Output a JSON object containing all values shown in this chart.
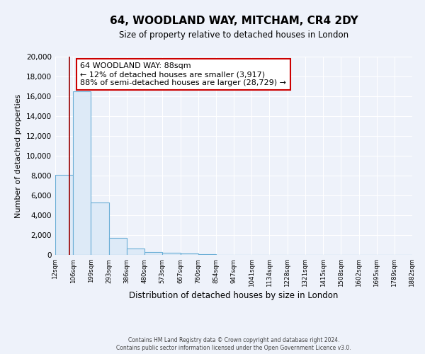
{
  "title": "64, WOODLAND WAY, MITCHAM, CR4 2DY",
  "subtitle": "Size of property relative to detached houses in London",
  "xlabel": "Distribution of detached houses by size in London",
  "ylabel": "Number of detached properties",
  "bar_edges": [
    12,
    106,
    199,
    293,
    386,
    480,
    573,
    667,
    760,
    854,
    947,
    1041,
    1134,
    1228,
    1321,
    1415,
    1508,
    1602,
    1695,
    1789,
    1882
  ],
  "bar_heights": [
    8100,
    16500,
    5300,
    1750,
    650,
    300,
    200,
    150,
    100,
    0,
    0,
    0,
    0,
    0,
    0,
    0,
    0,
    0,
    0,
    0
  ],
  "bar_color": "#ddeaf7",
  "bar_edge_color": "#6aaed6",
  "property_size": 88,
  "vline_color": "#990000",
  "annotation_title": "64 WOODLAND WAY: 88sqm",
  "annotation_line1": "← 12% of detached houses are smaller (3,917)",
  "annotation_line2": "88% of semi-detached houses are larger (28,729) →",
  "annotation_box_color": "#ffffff",
  "annotation_border_color": "#cc0000",
  "ylim": [
    0,
    20000
  ],
  "yticks": [
    0,
    2000,
    4000,
    6000,
    8000,
    10000,
    12000,
    14000,
    16000,
    18000,
    20000
  ],
  "background_color": "#eef2fa",
  "grid_color": "#ffffff",
  "footer_line1": "Contains HM Land Registry data © Crown copyright and database right 2024.",
  "footer_line2": "Contains public sector information licensed under the Open Government Licence v3.0."
}
